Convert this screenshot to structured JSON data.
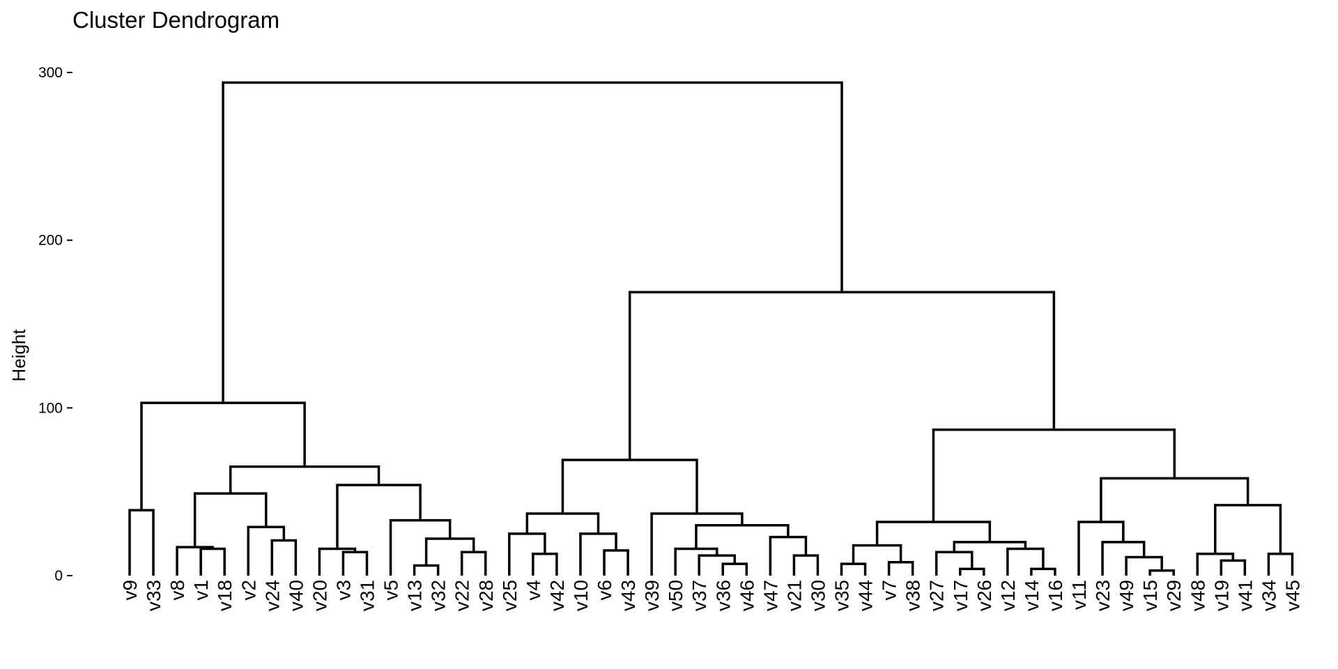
{
  "chart_data": {
    "type": "dendrogram",
    "title": "Cluster Dendrogram",
    "ylabel": "Height",
    "ylim": [
      0,
      300
    ],
    "yticks": [
      0,
      100,
      200,
      300
    ],
    "ytick_labels": [
      "0",
      "100",
      "200",
      "300"
    ],
    "leaves": [
      "v9",
      "v33",
      "v8",
      "v1",
      "v18",
      "v2",
      "v24",
      "v40",
      "v20",
      "v3",
      "v31",
      "v5",
      "v13",
      "v32",
      "v22",
      "v28",
      "v25",
      "v4",
      "v42",
      "v10",
      "v6",
      "v43",
      "v39",
      "v50",
      "v37",
      "v36",
      "v46",
      "v47",
      "v21",
      "v30",
      "v35",
      "v44",
      "v7",
      "v38",
      "v27",
      "v17",
      "v26",
      "v12",
      "v14",
      "v16",
      "v11",
      "v23",
      "v49",
      "v15",
      "v29",
      "v48",
      "v19",
      "v41",
      "v34",
      "v45"
    ],
    "merges": [
      {
        "left": "v9",
        "right": "v33",
        "height": 39
      },
      {
        "left": "v1",
        "right": "v18",
        "height": 16
      },
      {
        "left": "v8",
        "right": [
          "v1",
          "v18"
        ],
        "height": 17
      },
      {
        "left": "v24",
        "right": "v40",
        "height": 21
      },
      {
        "left": "v2",
        "right": [
          "v24",
          "v40"
        ],
        "height": 29
      },
      {
        "left": [
          "v8",
          "v1",
          "v18"
        ],
        "right": [
          "v2",
          "v24",
          "v40"
        ],
        "height": 49
      },
      {
        "left": "v3",
        "right": "v31",
        "height": 14
      },
      {
        "left": "v20",
        "right": [
          "v3",
          "v31"
        ],
        "height": 16
      },
      {
        "left": "v13",
        "right": "v32",
        "height": 6
      },
      {
        "left": "v22",
        "right": "v28",
        "height": 14
      },
      {
        "left": [
          "v13",
          "v32"
        ],
        "right": [
          "v22",
          "v28"
        ],
        "height": 22
      },
      {
        "left": "v5",
        "right": [
          "v13",
          "v32",
          "v22",
          "v28"
        ],
        "height": 33
      },
      {
        "left": [
          "v20",
          "v3",
          "v31"
        ],
        "right": [
          "v5",
          "v13",
          "v32",
          "v22",
          "v28"
        ],
        "height": 54
      },
      {
        "left": [
          "v8",
          "v1",
          "v18",
          "v2",
          "v24",
          "v40"
        ],
        "right": [
          "v20",
          "v3",
          "v31",
          "v5",
          "v13",
          "v32",
          "v22",
          "v28"
        ],
        "height": 65
      },
      {
        "left": [
          "v9",
          "v33"
        ],
        "right": [
          "v8",
          "v1",
          "v18",
          "v2",
          "v24",
          "v40",
          "v20",
          "v3",
          "v31",
          "v5",
          "v13",
          "v32",
          "v22",
          "v28"
        ],
        "height": 103
      },
      {
        "left": "v4",
        "right": "v42",
        "height": 13
      },
      {
        "left": "v25",
        "right": [
          "v4",
          "v42"
        ],
        "height": 25
      },
      {
        "left": "v6",
        "right": "v43",
        "height": 15
      },
      {
        "left": "v10",
        "right": [
          "v6",
          "v43"
        ],
        "height": 25
      },
      {
        "left": [
          "v25",
          "v4",
          "v42"
        ],
        "right": [
          "v10",
          "v6",
          "v43"
        ],
        "height": 37
      },
      {
        "left": "v36",
        "right": "v46",
        "height": 7
      },
      {
        "left": "v37",
        "right": [
          "v36",
          "v46"
        ],
        "height": 12
      },
      {
        "left": "v50",
        "right": [
          "v37",
          "v36",
          "v46"
        ],
        "height": 16
      },
      {
        "left": "v21",
        "right": "v30",
        "height": 12
      },
      {
        "left": "v47",
        "right": [
          "v21",
          "v30"
        ],
        "height": 23
      },
      {
        "left": [
          "v50",
          "v37",
          "v36",
          "v46"
        ],
        "right": [
          "v47",
          "v21",
          "v30"
        ],
        "height": 30
      },
      {
        "left": "v39",
        "right": [
          "v50",
          "v37",
          "v36",
          "v46",
          "v47",
          "v21",
          "v30"
        ],
        "height": 37
      },
      {
        "left": [
          "v25",
          "v4",
          "v42",
          "v10",
          "v6",
          "v43"
        ],
        "right": [
          "v39",
          "v50",
          "v37",
          "v36",
          "v46",
          "v47",
          "v21",
          "v30"
        ],
        "height": 69
      },
      {
        "left": "v35",
        "right": "v44",
        "height": 7
      },
      {
        "left": "v7",
        "right": "v38",
        "height": 8
      },
      {
        "left": [
          "v35",
          "v44"
        ],
        "right": [
          "v7",
          "v38"
        ],
        "height": 18
      },
      {
        "left": "v17",
        "right": "v26",
        "height": 4
      },
      {
        "left": "v27",
        "right": [
          "v17",
          "v26"
        ],
        "height": 14
      },
      {
        "left": "v14",
        "right": "v16",
        "height": 4
      },
      {
        "left": "v12",
        "right": [
          "v14",
          "v16"
        ],
        "height": 16
      },
      {
        "left": [
          "v27",
          "v17",
          "v26"
        ],
        "right": [
          "v12",
          "v14",
          "v16"
        ],
        "height": 20
      },
      {
        "left": [
          "v35",
          "v44",
          "v7",
          "v38"
        ],
        "right": [
          "v27",
          "v17",
          "v26",
          "v12",
          "v14",
          "v16"
        ],
        "height": 32
      },
      {
        "left": "v15",
        "right": "v29",
        "height": 3
      },
      {
        "left": "v49",
        "right": [
          "v15",
          "v29"
        ],
        "height": 11
      },
      {
        "left": "v23",
        "right": [
          "v49",
          "v15",
          "v29"
        ],
        "height": 20
      },
      {
        "left": "v11",
        "right": [
          "v23",
          "v49",
          "v15",
          "v29"
        ],
        "height": 32
      },
      {
        "left": "v19",
        "right": "v41",
        "height": 9
      },
      {
        "left": "v48",
        "right": [
          "v19",
          "v41"
        ],
        "height": 13
      },
      {
        "left": "v34",
        "right": "v45",
        "height": 13
      },
      {
        "left": [
          "v48",
          "v19",
          "v41"
        ],
        "right": [
          "v34",
          "v45"
        ],
        "height": 42
      },
      {
        "left": [
          "v11",
          "v23",
          "v49",
          "v15",
          "v29"
        ],
        "right": [
          "v48",
          "v19",
          "v41",
          "v34",
          "v45"
        ],
        "height": 58
      },
      {
        "left": [
          "v35",
          "v44",
          "v7",
          "v38",
          "v27",
          "v17",
          "v26",
          "v12",
          "v14",
          "v16"
        ],
        "right": [
          "v11",
          "v23",
          "v49",
          "v15",
          "v29",
          "v48",
          "v19",
          "v41",
          "v34",
          "v45"
        ],
        "height": 87
      },
      {
        "left": [
          "v25",
          "v4",
          "v42",
          "v10",
          "v6",
          "v43",
          "v39",
          "v50",
          "v37",
          "v36",
          "v46",
          "v47",
          "v21",
          "v30"
        ],
        "right": [
          "v35",
          "v44",
          "v7",
          "v38",
          "v27",
          "v17",
          "v26",
          "v12",
          "v14",
          "v16",
          "v11",
          "v23",
          "v49",
          "v15",
          "v29",
          "v48",
          "v19",
          "v41",
          "v34",
          "v45"
        ],
        "height": 169
      },
      {
        "left": [
          "v9",
          "v33",
          "v8",
          "v1",
          "v18",
          "v2",
          "v24",
          "v40",
          "v20",
          "v3",
          "v31",
          "v5",
          "v13",
          "v32",
          "v22",
          "v28"
        ],
        "right": [
          "v25",
          "v4",
          "v42",
          "v10",
          "v6",
          "v43",
          "v39",
          "v50",
          "v37",
          "v36",
          "v46",
          "v47",
          "v21",
          "v30",
          "v35",
          "v44",
          "v7",
          "v38",
          "v27",
          "v17",
          "v26",
          "v12",
          "v14",
          "v16",
          "v11",
          "v23",
          "v49",
          "v15",
          "v29",
          "v48",
          "v19",
          "v41",
          "v34",
          "v45"
        ],
        "height": 294
      }
    ]
  }
}
